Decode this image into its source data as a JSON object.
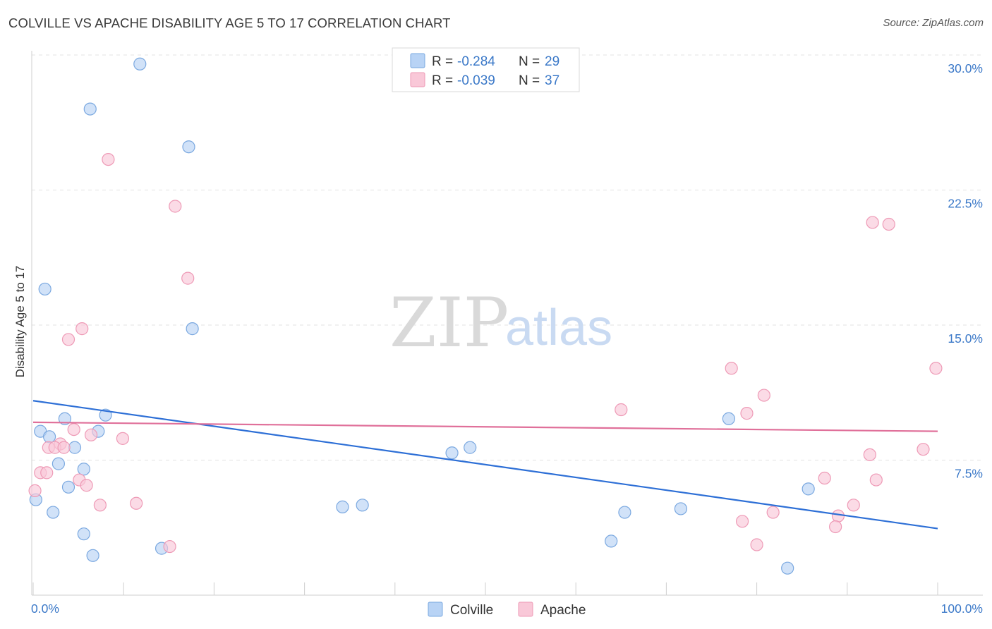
{
  "header": {
    "title": "COLVILLE VS APACHE DISABILITY AGE 5 TO 17 CORRELATION CHART",
    "source": "Source: ZipAtlas.com"
  },
  "watermark": {
    "zip": "ZIP",
    "atlas": "atlas"
  },
  "colors": {
    "colville_fill": "#b8d3f5",
    "colville_stroke": "#7aa8e0",
    "colville_line": "#2d6fd6",
    "apache_fill": "#f9c8d8",
    "apache_stroke": "#ee9ab6",
    "apache_line": "#e0709a",
    "grid": "#e3e3e3",
    "tick_label": "#3a78c8"
  },
  "stats_legend": [
    {
      "r_label": "R =",
      "r_value": "-0.284",
      "n_label": "N =",
      "n_value": "29"
    },
    {
      "r_label": "R =",
      "r_value": "-0.039",
      "n_label": "N =",
      "n_value": "37"
    }
  ],
  "chart_data": {
    "type": "scatter",
    "title": "COLVILLE VS APACHE DISABILITY AGE 5 TO 17 CORRELATION CHART",
    "xlabel": "",
    "ylabel": "Disability Age 5 to 17",
    "xlim": [
      0,
      100
    ],
    "ylim": [
      0,
      30
    ],
    "x_tick_labels": [
      "0.0%",
      "100.0%"
    ],
    "y_ticks": [
      7.5,
      15.0,
      22.5,
      30.0
    ],
    "y_tick_labels": [
      "7.5%",
      "15.0%",
      "22.5%",
      "30.0%"
    ],
    "grid": true,
    "legend": [
      "Colville",
      "Apache"
    ],
    "series": [
      {
        "name": "Colville",
        "r": -0.284,
        "n": 29,
        "trend": {
          "x": [
            0,
            100
          ],
          "y": [
            10.8,
            3.7
          ]
        },
        "points": [
          [
            11.8,
            29.5
          ],
          [
            6.3,
            27.0
          ],
          [
            17.2,
            24.9
          ],
          [
            1.3,
            17.0
          ],
          [
            17.6,
            14.8
          ],
          [
            3.5,
            9.8
          ],
          [
            8.0,
            10.0
          ],
          [
            0.8,
            9.1
          ],
          [
            1.8,
            8.8
          ],
          [
            7.2,
            9.1
          ],
          [
            4.6,
            8.2
          ],
          [
            2.8,
            7.3
          ],
          [
            5.6,
            7.0
          ],
          [
            3.9,
            6.0
          ],
          [
            0.3,
            5.3
          ],
          [
            2.2,
            4.6
          ],
          [
            5.6,
            3.4
          ],
          [
            6.6,
            2.2
          ],
          [
            14.2,
            2.6
          ],
          [
            34.2,
            4.9
          ],
          [
            36.4,
            5.0
          ],
          [
            46.3,
            7.9
          ],
          [
            48.3,
            8.2
          ],
          [
            63.9,
            3.0
          ],
          [
            65.4,
            4.6
          ],
          [
            71.6,
            4.8
          ],
          [
            76.9,
            9.8
          ],
          [
            85.7,
            5.9
          ],
          [
            83.4,
            1.5
          ]
        ]
      },
      {
        "name": "Apache",
        "r": -0.039,
        "n": 37,
        "trend": {
          "x": [
            0,
            100
          ],
          "y": [
            9.6,
            9.1
          ]
        },
        "points": [
          [
            8.3,
            24.2
          ],
          [
            15.7,
            21.6
          ],
          [
            17.1,
            17.6
          ],
          [
            5.4,
            14.8
          ],
          [
            3.9,
            14.2
          ],
          [
            4.5,
            9.2
          ],
          [
            6.4,
            8.9
          ],
          [
            9.9,
            8.7
          ],
          [
            3.0,
            8.4
          ],
          [
            1.7,
            8.2
          ],
          [
            2.4,
            8.2
          ],
          [
            3.4,
            8.2
          ],
          [
            0.8,
            6.8
          ],
          [
            1.5,
            6.8
          ],
          [
            5.1,
            6.4
          ],
          [
            5.9,
            6.1
          ],
          [
            7.4,
            5.0
          ],
          [
            11.4,
            5.1
          ],
          [
            15.1,
            2.7
          ],
          [
            0.2,
            5.8
          ],
          [
            65.0,
            10.3
          ],
          [
            77.2,
            12.6
          ],
          [
            78.9,
            10.1
          ],
          [
            80.8,
            11.1
          ],
          [
            78.4,
            4.1
          ],
          [
            80.0,
            2.8
          ],
          [
            81.8,
            4.6
          ],
          [
            87.5,
            6.5
          ],
          [
            89.0,
            4.4
          ],
          [
            88.7,
            3.8
          ],
          [
            90.7,
            5.0
          ],
          [
            92.5,
            7.8
          ],
          [
            93.2,
            6.4
          ],
          [
            92.8,
            20.7
          ],
          [
            94.6,
            20.6
          ],
          [
            98.4,
            8.1
          ],
          [
            99.8,
            12.6
          ]
        ]
      }
    ]
  }
}
